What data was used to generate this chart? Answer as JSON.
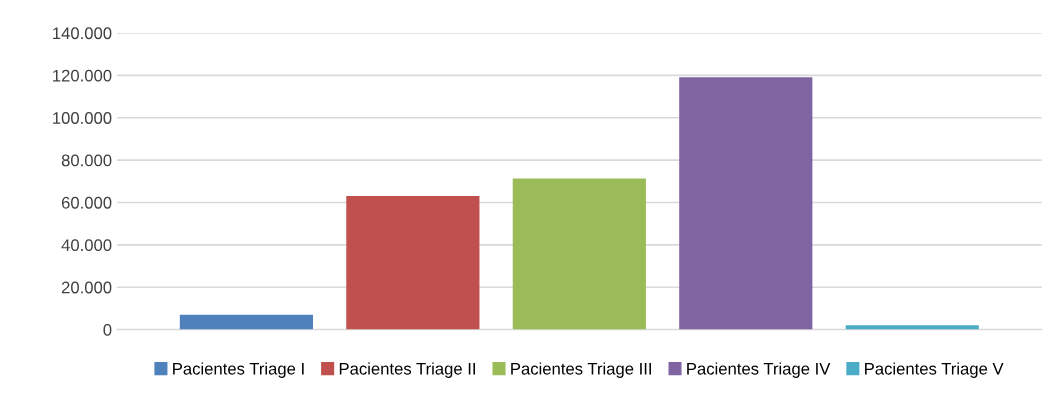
{
  "chart_data": {
    "type": "bar",
    "categories": [
      null
    ],
    "series": [
      {
        "name": "Pacientes Triage I",
        "color": "#4f81bd",
        "values": [
          7000
        ]
      },
      {
        "name": "Pacientes Triage II",
        "color": "#c0504d",
        "values": [
          63000
        ]
      },
      {
        "name": "Pacientes Triage III",
        "color": "#9bbb59",
        "values": [
          71300
        ]
      },
      {
        "name": "Pacientes Triage IV",
        "color": "#8064a2",
        "values": [
          119100
        ]
      },
      {
        "name": "Pacientes Triage V",
        "color": "#4bacc6",
        "values": [
          2000
        ]
      }
    ],
    "ylim": [
      0,
      140000
    ],
    "yticks": [
      0,
      {
        "value": 20000,
        "label": "20.000"
      },
      {
        "value": 40000,
        "label": "40.000"
      },
      {
        "value": 60000,
        "label": "60.000"
      },
      {
        "value": 80000,
        "label": "80.000"
      },
      {
        "value": 100000,
        "label": "100.000"
      },
      {
        "value": 120000,
        "label": "120.000"
      },
      {
        "value": 140000,
        "label": "140.000"
      }
    ],
    "grid": "y",
    "legend": "bottom"
  }
}
